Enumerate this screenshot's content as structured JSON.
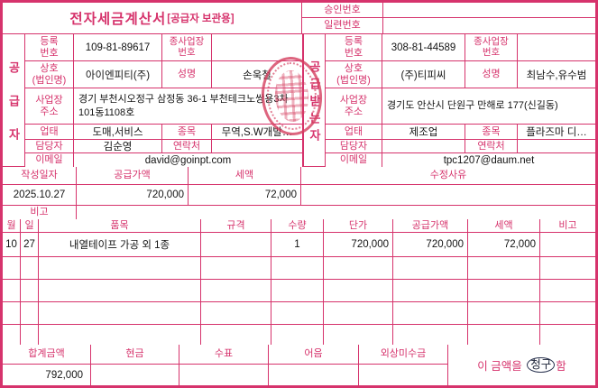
{
  "colors": {
    "accent": "#d6336c",
    "text": "#141414",
    "seal": "#d53e5f",
    "statement_mark": "#1d2438"
  },
  "title": {
    "main": "전자세금계산서",
    "suffix": "[공급자 보관용]"
  },
  "approval": {
    "label": "승인번호",
    "value": ""
  },
  "serial": {
    "label": "일련번호",
    "value": ""
  },
  "supplier": {
    "side_label": "공급자",
    "reg_no_label": "등록\n번호",
    "reg_no": "109-81-89617",
    "sub_biz_label": "종사업장\n번호",
    "sub_biz": "",
    "company_label": "상호\n(법인명)",
    "company": "아이엔피티(주)",
    "name_label": "성명",
    "name": "손욱철",
    "address_label": "사업장\n주소",
    "address": "경기 부천시오정구 삼정동 36-1 부천테크노쌍용3차 101동1108호",
    "biz_type_label": "업태",
    "biz_type": "도매,서비스",
    "item_label": "종목",
    "item": "무역,S.W개발…",
    "manager_label": "담당자",
    "manager": "김순영",
    "contact_label": "연락처",
    "contact": "",
    "email_label": "이메일",
    "email": "david@goinpt.com"
  },
  "buyer": {
    "side_label": "공급받는자",
    "reg_no_label": "등록\n번호",
    "reg_no": "308-81-44589",
    "sub_biz_label": "종사업장\n번호",
    "sub_biz": "",
    "company_label": "상호\n(법인명)",
    "company": "(주)티피씨",
    "name_label": "성명",
    "name": "최남수,유수범",
    "address_label": "사업장\n주소",
    "address": "경기도 안산시 단원구 만해로 177(신길동)",
    "biz_type_label": "업태",
    "biz_type": "제조업",
    "item_label": "종목",
    "item": "플라즈마 디…",
    "manager_label": "담당자",
    "manager": "",
    "contact_label": "연락처",
    "contact": "",
    "email_label": "이메일",
    "email": "tpc1207@daum.net"
  },
  "summary": {
    "date_label": "작성일자",
    "date": "2025.10.27",
    "supply_label": "공급가액",
    "supply": "720,000",
    "tax_label": "세액",
    "tax": "72,000",
    "reason_label": "수정사유",
    "reason": "",
    "note_label": "비고",
    "note": ""
  },
  "items": {
    "headers": [
      "월",
      "일",
      "품목",
      "규격",
      "수량",
      "단가",
      "공급가액",
      "세액",
      "비고"
    ],
    "rows": [
      {
        "month": "10",
        "day": "27",
        "name": "내열테이프 가공 외 1종",
        "spec": "",
        "qty": "1",
        "unit_price": "720,000",
        "supply": "720,000",
        "tax": "72,000",
        "note": ""
      }
    ],
    "empty_row_count": 4
  },
  "totals": {
    "total_label": "합계금액",
    "total": "792,000",
    "cash_label": "현금",
    "cash": "",
    "check_label": "수표",
    "check": "",
    "bill_label": "어음",
    "bill": "",
    "receivable_label": "외상미수금",
    "receivable": "",
    "statement_prefix": "이 금액을",
    "statement_marked": "청구",
    "statement_suffix": "함"
  }
}
